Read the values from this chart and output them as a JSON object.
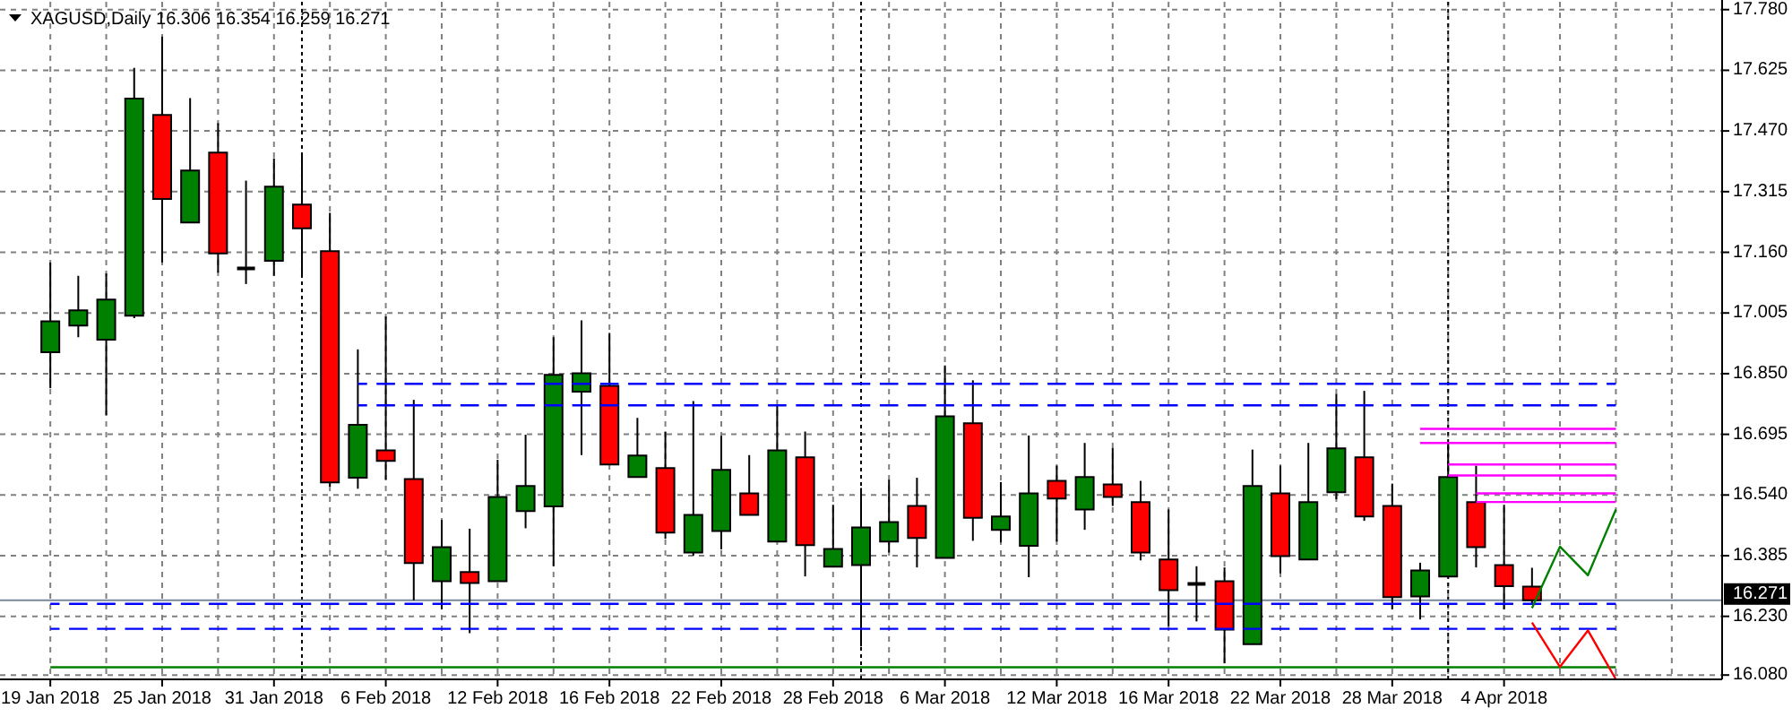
{
  "chart_data": {
    "type": "candlestick",
    "title": "XAGUSD,Daily 16.306 16.354 16.259 16.271",
    "categories": [
      "19 Jan 2018",
      null,
      null,
      null,
      "25 Jan 2018",
      null,
      null,
      null,
      "31 Jan 2018",
      null,
      null,
      null,
      "6 Feb 2018",
      null,
      null,
      null,
      "12 Feb 2018",
      null,
      null,
      null,
      "16 Feb 2018",
      null,
      null,
      null,
      "22 Feb 2018",
      null,
      null,
      null,
      "28 Feb 2018",
      null,
      null,
      null,
      "6 Mar 2018",
      null,
      null,
      null,
      "12 Mar 2018",
      null,
      null,
      null,
      "16 Mar 2018",
      null,
      null,
      null,
      "22 Mar 2018",
      null,
      null,
      null,
      "28 Mar 2018",
      null,
      null,
      null,
      "4 Apr 2018",
      null,
      null,
      null,
      null,
      null,
      null,
      null
    ],
    "series": [
      {
        "ohlc": [
          [
            16.905,
            17.134,
            16.813,
            16.984
          ],
          [
            16.973,
            17.1,
            16.943,
            17.012
          ],
          [
            16.937,
            17.106,
            16.744,
            17.039
          ],
          [
            16.998,
            17.631,
            16.992,
            17.553
          ],
          [
            17.511,
            17.711,
            17.134,
            17.296
          ],
          [
            17.236,
            17.554,
            17.236,
            17.369
          ],
          [
            17.415,
            17.49,
            17.108,
            17.157
          ],
          [
            17.119,
            17.343,
            17.079,
            17.119
          ],
          [
            17.138,
            17.4,
            17.1,
            17.328
          ],
          [
            17.282,
            17.411,
            17.097,
            17.221
          ],
          [
            17.163,
            17.261,
            16.561,
            16.572
          ],
          [
            16.584,
            16.912,
            16.556,
            16.719
          ],
          [
            16.654,
            16.996,
            16.579,
            16.627
          ],
          [
            16.581,
            16.783,
            16.271,
            16.366
          ],
          [
            16.32,
            16.476,
            16.248,
            16.407
          ],
          [
            16.343,
            16.454,
            16.187,
            16.315
          ],
          [
            16.32,
            16.63,
            16.32,
            16.535
          ],
          [
            16.499,
            16.694,
            16.455,
            16.563
          ],
          [
            16.511,
            16.943,
            16.358,
            16.847
          ],
          [
            16.804,
            16.986,
            16.642,
            16.851
          ],
          [
            16.819,
            16.954,
            16.618,
            16.618
          ],
          [
            16.586,
            16.737,
            16.586,
            16.641
          ],
          [
            16.609,
            16.702,
            16.428,
            16.444
          ],
          [
            16.393,
            16.78,
            16.385,
            16.489
          ],
          [
            16.448,
            16.691,
            16.401,
            16.604
          ],
          [
            16.544,
            16.642,
            16.489,
            16.489
          ],
          [
            16.421,
            16.772,
            16.421,
            16.654
          ],
          [
            16.636,
            16.702,
            16.332,
            16.412
          ],
          [
            16.357,
            16.515,
            16.357,
            16.402
          ],
          [
            16.361,
            16.558,
            16.153,
            16.457
          ],
          [
            16.421,
            16.579,
            16.393,
            16.471
          ],
          [
            16.512,
            16.584,
            16.355,
            16.43
          ],
          [
            16.379,
            16.871,
            16.379,
            16.741
          ],
          [
            16.723,
            16.833,
            16.423,
            16.482
          ],
          [
            16.451,
            16.573,
            16.419,
            16.485
          ],
          [
            16.41,
            16.692,
            16.33,
            16.544
          ],
          [
            16.576,
            16.615,
            16.421,
            16.531
          ],
          [
            16.503,
            16.673,
            16.451,
            16.586
          ],
          [
            16.567,
            16.66,
            16.512,
            16.535
          ],
          [
            16.522,
            16.576,
            16.373,
            16.393
          ],
          [
            16.375,
            16.503,
            16.205,
            16.297
          ],
          [
            16.313,
            16.358,
            16.217,
            16.313
          ],
          [
            16.32,
            16.355,
            16.11,
            16.196
          ],
          [
            16.159,
            16.656,
            16.159,
            16.563
          ],
          [
            16.544,
            16.615,
            16.34,
            16.384
          ],
          [
            16.375,
            16.673,
            16.375,
            16.522
          ],
          [
            16.547,
            16.798,
            16.529,
            16.659
          ],
          [
            16.636,
            16.806,
            16.474,
            16.485
          ],
          [
            16.512,
            16.569,
            16.248,
            16.279
          ],
          [
            16.281,
            16.367,
            16.222,
            16.347
          ],
          [
            16.332,
            16.673,
            16.332,
            16.586
          ],
          [
            16.522,
            16.615,
            16.355,
            16.407
          ],
          [
            16.361,
            16.515,
            16.248,
            16.307
          ],
          [
            16.306,
            16.354,
            16.259,
            16.271
          ],
          null,
          null,
          null,
          null,
          null,
          null
        ],
        "colors": [
          "#008000",
          "#008000",
          "#008000",
          "#008000",
          "#ff0000",
          "#008000",
          "#ff0000",
          "#000000",
          "#008000",
          "#ff0000",
          "#ff0000",
          "#008000",
          "#ff0000",
          "#ff0000",
          "#008000",
          "#ff0000",
          "#008000",
          "#008000",
          "#008000",
          "#008000",
          "#ff0000",
          "#008000",
          "#ff0000",
          "#008000",
          "#008000",
          "#ff0000",
          "#008000",
          "#ff0000",
          "#008000",
          "#008000",
          "#008000",
          "#ff0000",
          "#008000",
          "#ff0000",
          "#008000",
          "#008000",
          "#ff0000",
          "#008000",
          "#ff0000",
          "#ff0000",
          "#ff0000",
          "#000000",
          "#ff0000",
          "#008000",
          "#ff0000",
          "#008000",
          "#008000",
          "#ff0000",
          "#ff0000",
          "#008000",
          "#008000",
          "#ff0000",
          "#ff0000",
          "#ff0000",
          null,
          null,
          null,
          null,
          null,
          null
        ]
      },
      {
        "type": "line",
        "color": "#0000ff",
        "line_style": "dashed",
        "values": [
          null,
          null,
          null,
          null,
          null,
          null,
          null,
          null,
          null,
          null,
          null,
          16.824,
          16.824,
          16.824,
          16.824,
          16.824,
          16.824,
          16.824,
          16.824,
          16.824,
          16.824,
          16.824,
          16.824,
          16.824,
          16.824,
          16.824,
          16.824,
          16.824,
          16.824,
          16.824,
          16.824,
          16.824,
          16.824,
          16.824,
          16.824,
          16.824,
          16.824,
          16.824,
          16.824,
          16.824,
          16.824,
          16.824,
          16.824,
          16.824,
          16.824,
          16.824,
          16.824,
          16.824,
          16.824,
          16.824,
          16.824,
          16.824,
          16.824,
          16.824,
          16.824,
          16.824,
          16.824,
          null,
          null,
          null
        ]
      },
      {
        "type": "line",
        "color": "#0000ff",
        "line_style": "dashed",
        "values": [
          null,
          null,
          null,
          null,
          null,
          null,
          null,
          null,
          null,
          null,
          null,
          16.769,
          16.769,
          16.769,
          16.769,
          16.769,
          16.769,
          16.769,
          16.769,
          16.769,
          16.769,
          16.769,
          16.769,
          16.769,
          16.769,
          16.769,
          16.769,
          16.769,
          16.769,
          16.769,
          16.769,
          16.769,
          16.769,
          16.769,
          16.769,
          16.769,
          16.769,
          16.769,
          16.769,
          16.769,
          16.769,
          16.769,
          16.769,
          16.769,
          16.769,
          16.769,
          16.769,
          16.769,
          16.769,
          16.769,
          16.769,
          16.769,
          16.769,
          16.769,
          16.769,
          16.769,
          16.769,
          null,
          null,
          null
        ]
      },
      {
        "type": "line",
        "color": "#0000ff",
        "line_style": "dashed",
        "values": [
          16.262,
          16.262,
          16.262,
          16.262,
          16.262,
          16.262,
          16.262,
          16.262,
          16.262,
          16.262,
          16.262,
          16.262,
          16.262,
          16.262,
          16.262,
          16.262,
          16.262,
          16.262,
          16.262,
          16.262,
          16.262,
          16.262,
          16.262,
          16.262,
          16.262,
          16.262,
          16.262,
          16.262,
          16.262,
          16.262,
          16.262,
          16.262,
          16.262,
          16.262,
          16.262,
          16.262,
          16.262,
          16.262,
          16.262,
          16.262,
          16.262,
          16.262,
          16.262,
          16.262,
          16.262,
          16.262,
          16.262,
          16.262,
          16.262,
          16.262,
          16.262,
          16.262,
          16.262,
          16.262,
          16.262,
          16.262,
          16.262,
          null,
          null,
          null
        ]
      },
      {
        "type": "line",
        "color": "#0000ff",
        "line_style": "dashed",
        "values": [
          16.198,
          16.198,
          16.198,
          16.198,
          16.198,
          16.198,
          16.198,
          16.198,
          16.198,
          16.198,
          16.198,
          16.198,
          16.198,
          16.198,
          16.198,
          16.198,
          16.198,
          16.198,
          16.198,
          16.198,
          16.198,
          16.198,
          16.198,
          16.198,
          16.198,
          16.198,
          16.198,
          16.198,
          16.198,
          16.198,
          16.198,
          16.198,
          16.198,
          16.198,
          16.198,
          16.198,
          16.198,
          16.198,
          16.198,
          16.198,
          16.198,
          16.198,
          16.198,
          16.198,
          16.198,
          16.198,
          16.198,
          16.198,
          16.198,
          16.198,
          16.198,
          16.198,
          16.198,
          16.198,
          16.198,
          16.198,
          16.198,
          null,
          null,
          null
        ]
      },
      {
        "type": "line",
        "color": "#008000",
        "line_style": "solid",
        "values": [
          16.1,
          16.1,
          16.1,
          16.1,
          16.1,
          16.1,
          16.1,
          16.1,
          16.1,
          16.1,
          16.1,
          16.1,
          16.1,
          16.1,
          16.1,
          16.1,
          16.1,
          16.1,
          16.1,
          16.1,
          16.1,
          16.1,
          16.1,
          16.1,
          16.1,
          16.1,
          16.1,
          16.1,
          16.1,
          16.1,
          16.1,
          16.1,
          16.1,
          16.1,
          16.1,
          16.1,
          16.1,
          16.1,
          16.1,
          16.1,
          16.1,
          16.1,
          16.1,
          16.1,
          16.1,
          16.1,
          16.1,
          16.1,
          16.1,
          16.1,
          16.1,
          16.1,
          16.1,
          16.1,
          16.1,
          16.1,
          16.1,
          null,
          null,
          null
        ]
      },
      {
        "type": "line",
        "color": "#ff00ff",
        "line_style": "solid",
        "values": [
          null,
          null,
          null,
          null,
          null,
          null,
          null,
          null,
          null,
          null,
          null,
          null,
          null,
          null,
          null,
          null,
          null,
          null,
          null,
          null,
          null,
          null,
          null,
          null,
          null,
          null,
          null,
          null,
          null,
          null,
          null,
          null,
          null,
          null,
          null,
          null,
          null,
          null,
          null,
          null,
          null,
          null,
          null,
          null,
          null,
          null,
          null,
          null,
          null,
          16.709,
          16.709,
          16.709,
          16.709,
          16.709,
          16.709,
          16.709,
          16.709,
          null,
          null,
          null
        ]
      },
      {
        "type": "line",
        "color": "#ff00ff",
        "line_style": "solid",
        "values": [
          null,
          null,
          null,
          null,
          null,
          null,
          null,
          null,
          null,
          null,
          null,
          null,
          null,
          null,
          null,
          null,
          null,
          null,
          null,
          null,
          null,
          null,
          null,
          null,
          null,
          null,
          null,
          null,
          null,
          null,
          null,
          null,
          null,
          null,
          null,
          null,
          null,
          null,
          null,
          null,
          null,
          null,
          null,
          null,
          null,
          null,
          null,
          null,
          null,
          16.673,
          16.673,
          16.673,
          16.673,
          16.673,
          16.673,
          16.673,
          16.673,
          null,
          null,
          null
        ]
      },
      {
        "type": "line",
        "color": "#ff00ff",
        "line_style": "solid",
        "values": [
          null,
          null,
          null,
          null,
          null,
          null,
          null,
          null,
          null,
          null,
          null,
          null,
          null,
          null,
          null,
          null,
          null,
          null,
          null,
          null,
          null,
          null,
          null,
          null,
          null,
          null,
          null,
          null,
          null,
          null,
          null,
          null,
          null,
          null,
          null,
          null,
          null,
          null,
          null,
          null,
          null,
          null,
          null,
          null,
          null,
          null,
          null,
          null,
          null,
          null,
          16.618,
          16.618,
          16.618,
          16.618,
          16.618,
          16.618,
          16.618,
          null,
          null,
          null
        ]
      },
      {
        "type": "line",
        "color": "#ff00ff",
        "line_style": "solid",
        "values": [
          null,
          null,
          null,
          null,
          null,
          null,
          null,
          null,
          null,
          null,
          null,
          null,
          null,
          null,
          null,
          null,
          null,
          null,
          null,
          null,
          null,
          null,
          null,
          null,
          null,
          null,
          null,
          null,
          null,
          null,
          null,
          null,
          null,
          null,
          null,
          null,
          null,
          null,
          null,
          null,
          null,
          null,
          null,
          null,
          null,
          null,
          null,
          null,
          null,
          null,
          16.59,
          16.59,
          16.59,
          16.59,
          16.59,
          16.59,
          16.59,
          null,
          null,
          null
        ]
      },
      {
        "type": "line",
        "color": "#ff00ff",
        "line_style": "solid",
        "values": [
          null,
          null,
          null,
          null,
          null,
          null,
          null,
          null,
          null,
          null,
          null,
          null,
          null,
          null,
          null,
          null,
          null,
          null,
          null,
          null,
          null,
          null,
          null,
          null,
          null,
          null,
          null,
          null,
          null,
          null,
          null,
          null,
          null,
          null,
          null,
          null,
          null,
          null,
          null,
          null,
          null,
          null,
          null,
          null,
          null,
          null,
          null,
          null,
          null,
          null,
          null,
          16.544,
          16.544,
          16.544,
          16.544,
          16.544,
          16.544,
          null,
          null,
          null
        ]
      },
      {
        "type": "line",
        "color": "#ff00ff",
        "line_style": "solid",
        "values": [
          null,
          null,
          null,
          null,
          null,
          null,
          null,
          null,
          null,
          null,
          null,
          null,
          null,
          null,
          null,
          null,
          null,
          null,
          null,
          null,
          null,
          null,
          null,
          null,
          null,
          null,
          null,
          null,
          null,
          null,
          null,
          null,
          null,
          null,
          null,
          null,
          null,
          null,
          null,
          null,
          null,
          null,
          null,
          null,
          null,
          null,
          null,
          null,
          null,
          null,
          null,
          16.522,
          16.522,
          16.522,
          16.522,
          16.522,
          16.522,
          null,
          null,
          null
        ]
      },
      {
        "type": "line",
        "color": "#008000",
        "line_style": "solid",
        "values": [
          null,
          null,
          null,
          null,
          null,
          null,
          null,
          null,
          null,
          null,
          null,
          null,
          null,
          null,
          null,
          null,
          null,
          null,
          null,
          null,
          null,
          null,
          null,
          null,
          null,
          null,
          null,
          null,
          null,
          null,
          null,
          null,
          null,
          null,
          null,
          null,
          null,
          null,
          null,
          null,
          null,
          null,
          null,
          null,
          null,
          null,
          null,
          null,
          null,
          null,
          null,
          null,
          null,
          16.251,
          16.408,
          16.335,
          16.503,
          null,
          null,
          null
        ]
      },
      {
        "type": "line",
        "color": "#ff0000",
        "line_style": "solid",
        "values": [
          null,
          null,
          null,
          null,
          null,
          null,
          null,
          null,
          null,
          null,
          null,
          null,
          null,
          null,
          null,
          null,
          null,
          null,
          null,
          null,
          null,
          null,
          null,
          null,
          null,
          null,
          null,
          null,
          null,
          null,
          null,
          null,
          null,
          null,
          null,
          null,
          null,
          null,
          null,
          null,
          null,
          null,
          null,
          null,
          null,
          null,
          null,
          null,
          null,
          null,
          null,
          null,
          null,
          16.214,
          16.101,
          16.194,
          16.069,
          null,
          null,
          null
        ]
      }
    ],
    "ylim": [
      16.069,
      17.8
    ],
    "yticks": [
      {
        "value": 16.08,
        "label": "16.080"
      },
      {
        "value": 16.23,
        "label": "16.230"
      },
      16.385,
      {
        "value": 16.54,
        "label": "16.540"
      },
      16.695,
      {
        "value": 16.85,
        "label": "16.850"
      },
      17.005,
      {
        "value": 17.16,
        "label": "17.160"
      },
      17.315,
      {
        "value": 17.47,
        "label": "17.470"
      },
      17.625,
      {
        "value": 17.78,
        "label": "17.780"
      }
    ],
    "grid": true,
    "ref_lines": [
      {
        "axis": "y",
        "value": 16.271,
        "label": "16.271",
        "color": "#778899"
      }
    ]
  }
}
